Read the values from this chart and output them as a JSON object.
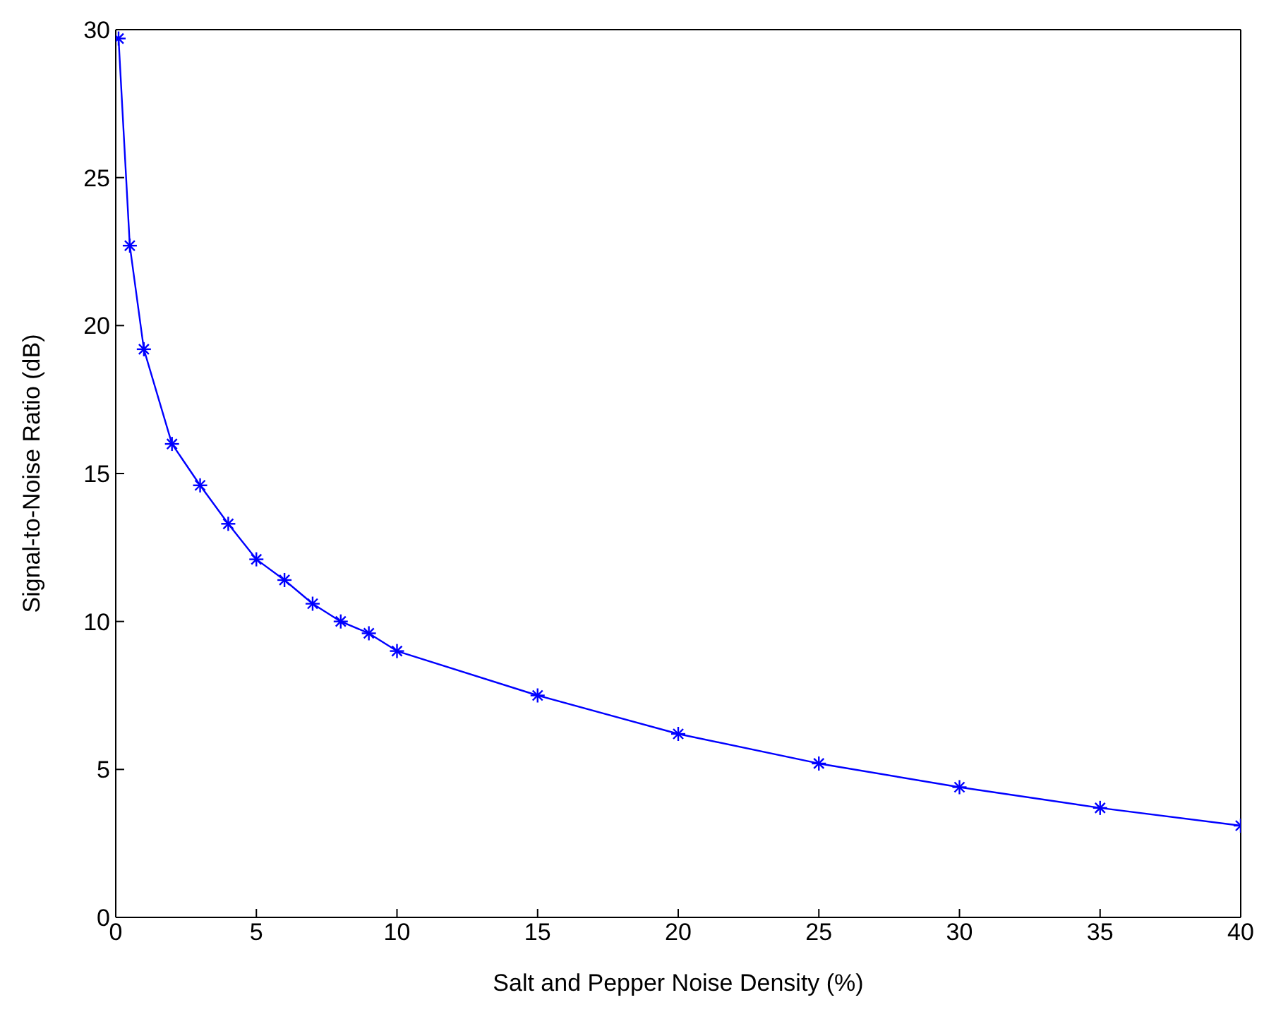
{
  "chart_data": {
    "type": "line",
    "xlabel": "Salt and Pepper Noise Density (%)",
    "ylabel": "Signal-to-Noise Ratio (dB)",
    "x": [
      0.1,
      0.5,
      1,
      2,
      3,
      4,
      5,
      6,
      7,
      8,
      9,
      10,
      15,
      20,
      25,
      30,
      35,
      40
    ],
    "series": [
      {
        "color": "#0000ff",
        "values": [
          29.7,
          22.7,
          19.2,
          16.0,
          14.6,
          13.3,
          12.1,
          11.4,
          10.6,
          10.0,
          9.6,
          9.0,
          7.5,
          6.2,
          5.2,
          4.4,
          3.7,
          3.1
        ]
      }
    ],
    "xlim": [
      0,
      40
    ],
    "xticks": [
      0,
      5,
      10,
      15,
      20,
      25,
      30,
      35,
      40
    ],
    "ylim": [
      0,
      30
    ],
    "yticks": [
      0,
      5,
      10,
      15,
      20,
      25,
      30
    ],
    "grid": false,
    "legend": false,
    "marker": "cross",
    "line_style": "solid"
  }
}
